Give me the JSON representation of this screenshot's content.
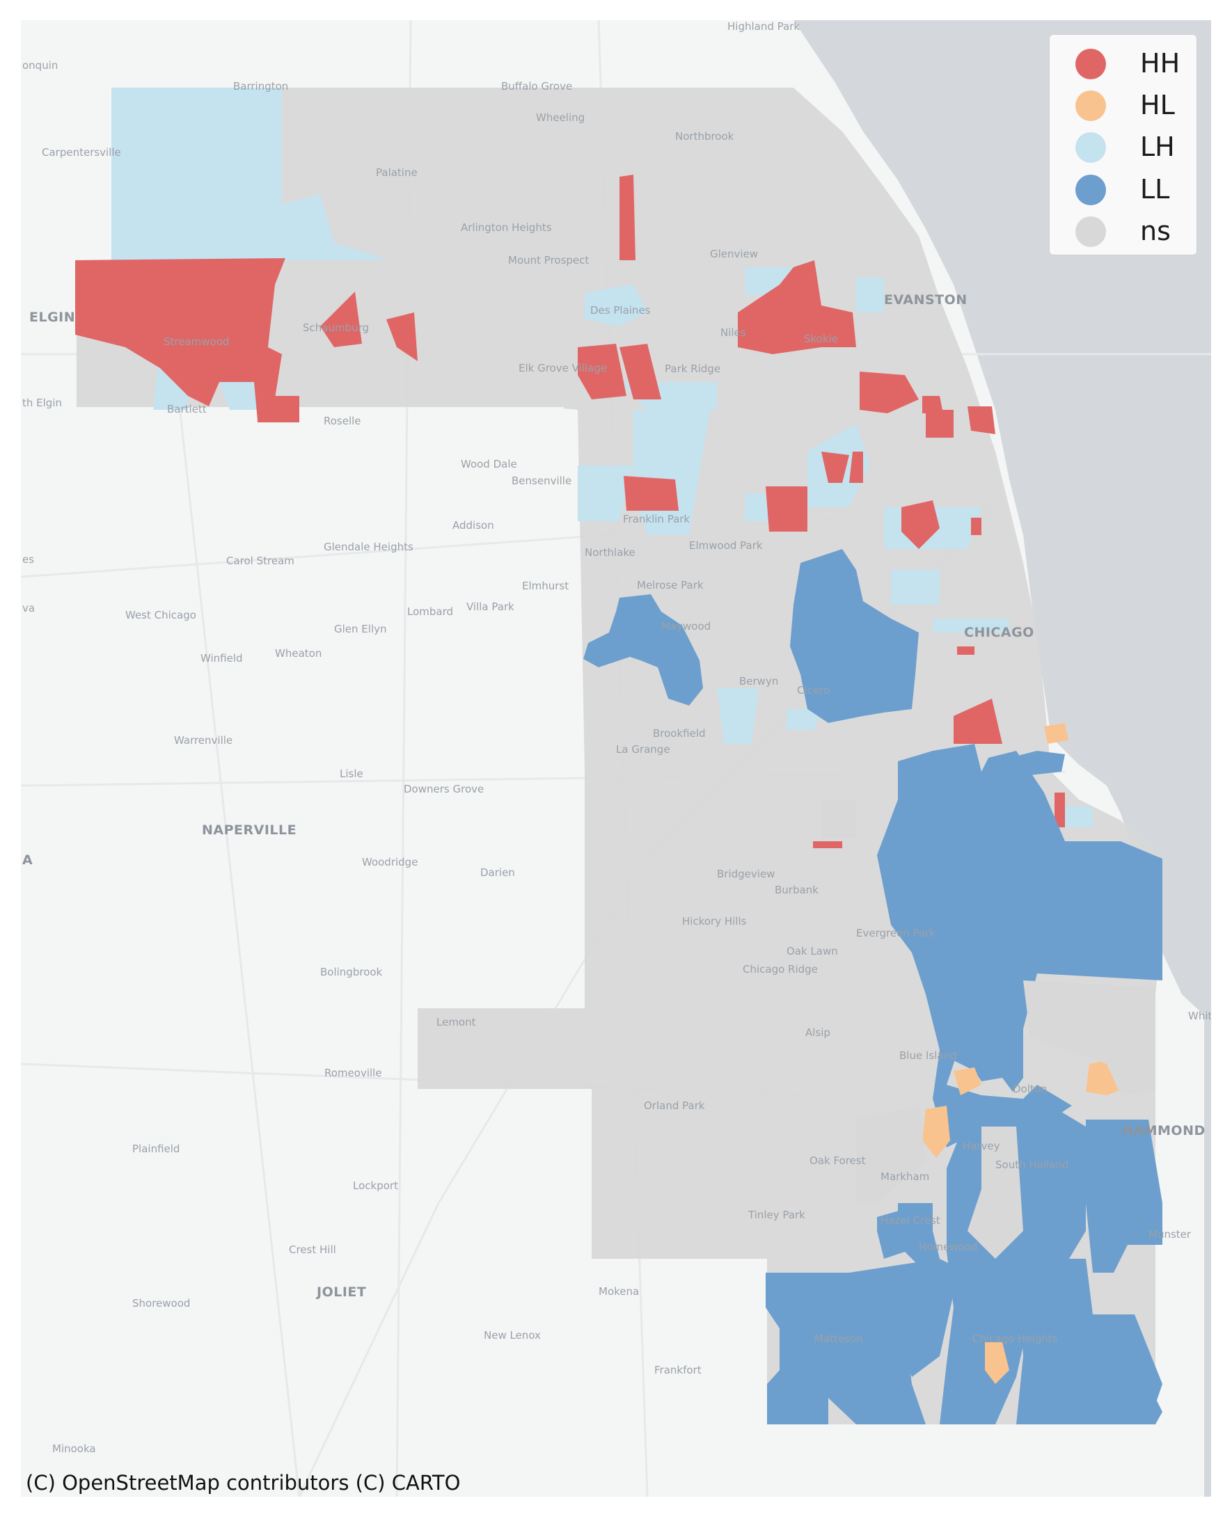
{
  "map": {
    "colors": {
      "HH": "#e06666",
      "HL": "#f9c38f",
      "LH": "#c5e2ef",
      "LL": "#6d9fce",
      "ns": "#d8d8d8",
      "water": "#d4d8dc",
      "land": "#f4f5f5"
    },
    "places": [
      {
        "name": "Highland Park"
      },
      {
        "name": "Barrington"
      },
      {
        "name": "Buffalo Grove"
      },
      {
        "name": "Wheeling"
      },
      {
        "name": "Northbrook"
      },
      {
        "name": "Carpentersville"
      },
      {
        "name": "Palatine"
      },
      {
        "name": "Arlington Heights"
      },
      {
        "name": "Mount Prospect"
      },
      {
        "name": "Glenview"
      },
      {
        "name": "EVANSTON"
      },
      {
        "name": "ELGIN"
      },
      {
        "name": "Schaumburg"
      },
      {
        "name": "Des Plaines"
      },
      {
        "name": "Niles"
      },
      {
        "name": "Skokie"
      },
      {
        "name": "Streamwood"
      },
      {
        "name": "Elk Grove Village"
      },
      {
        "name": "Park Ridge"
      },
      {
        "name": "Bartlett"
      },
      {
        "name": "Roselle"
      },
      {
        "name": "Wood Dale"
      },
      {
        "name": "Bensenville"
      },
      {
        "name": "Addison"
      },
      {
        "name": "Franklin Park"
      },
      {
        "name": "Glendale Heights"
      },
      {
        "name": "Carol Stream"
      },
      {
        "name": "Northlake"
      },
      {
        "name": "Elmwood Park"
      },
      {
        "name": "Elmhurst"
      },
      {
        "name": "Melrose Park"
      },
      {
        "name": "West Chicago"
      },
      {
        "name": "Lombard"
      },
      {
        "name": "Villa Park"
      },
      {
        "name": "Glen Ellyn"
      },
      {
        "name": "Maywood"
      },
      {
        "name": "CHICAGO"
      },
      {
        "name": "Winfield"
      },
      {
        "name": "Wheaton"
      },
      {
        "name": "Berwyn"
      },
      {
        "name": "Cicero"
      },
      {
        "name": "Warrenville"
      },
      {
        "name": "Brookfield"
      },
      {
        "name": "La Grange"
      },
      {
        "name": "Lisle"
      },
      {
        "name": "Downers Grove"
      },
      {
        "name": "NAPERVILLE"
      },
      {
        "name": "Woodridge"
      },
      {
        "name": "Darien"
      },
      {
        "name": "Bridgeview"
      },
      {
        "name": "Burbank"
      },
      {
        "name": "Hickory Hills"
      },
      {
        "name": "Evergreen Park"
      },
      {
        "name": "Oak Lawn"
      },
      {
        "name": "Chicago Ridge"
      },
      {
        "name": "Bolingbrook"
      },
      {
        "name": "Lemont"
      },
      {
        "name": "Alsip"
      },
      {
        "name": "Blue Island"
      },
      {
        "name": "Romeoville"
      },
      {
        "name": "Dolton"
      },
      {
        "name": "Orland Park"
      },
      {
        "name": "Harvey"
      },
      {
        "name": "HAMMOND"
      },
      {
        "name": "Plainfield"
      },
      {
        "name": "Oak Forest"
      },
      {
        "name": "Markham"
      },
      {
        "name": "South Holland"
      },
      {
        "name": "Lockport"
      },
      {
        "name": "Tinley Park"
      },
      {
        "name": "Hazel Crest"
      },
      {
        "name": "Munster"
      },
      {
        "name": "Homewood"
      },
      {
        "name": "Crest Hill"
      },
      {
        "name": "Mokena"
      },
      {
        "name": "JOLIET"
      },
      {
        "name": "Shorewood"
      },
      {
        "name": "New Lenox"
      },
      {
        "name": "Matteson"
      },
      {
        "name": "Chicago Heights"
      },
      {
        "name": "Frankfort"
      },
      {
        "name": "Minooka"
      },
      {
        "name": "Whitin"
      },
      {
        "name": "onquin"
      },
      {
        "name": "th Elgin"
      },
      {
        "name": "es"
      },
      {
        "name": "va"
      },
      {
        "name": "A"
      }
    ]
  },
  "legend": {
    "items": [
      {
        "key": "HH",
        "label": "HH"
      },
      {
        "key": "HL",
        "label": "HL"
      },
      {
        "key": "LH",
        "label": "LH"
      },
      {
        "key": "LL",
        "label": "LL"
      },
      {
        "key": "ns",
        "label": "ns"
      }
    ]
  },
  "attribution": "(C) OpenStreetMap contributors (C) CARTO"
}
